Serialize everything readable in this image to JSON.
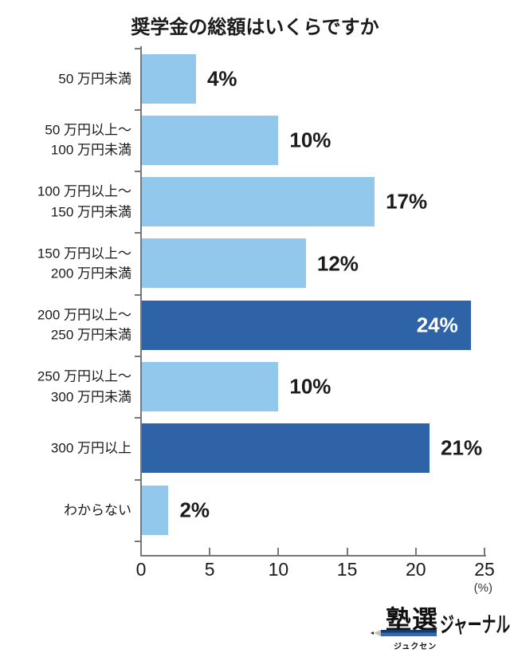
{
  "chart_data": {
    "type": "bar",
    "orientation": "horizontal",
    "title": "奨学金の総額はいくらですか",
    "categories": [
      "50 万円未満",
      "50 万円以上～\n100 万円未満",
      "100 万円以上～\n150 万円未満",
      "150 万円以上～\n200 万円未満",
      "200 万円以上～\n250 万円未満",
      "250 万円以上～\n300 万円未満",
      "300 万円以上",
      "わからない"
    ],
    "values": [
      4,
      10,
      17,
      12,
      24,
      10,
      21,
      2
    ],
    "value_labels": [
      "4%",
      "10%",
      "17%",
      "12%",
      "24%",
      "10%",
      "21%",
      "2%"
    ],
    "bar_colors": [
      "light",
      "light",
      "light",
      "light",
      "dark",
      "light",
      "dark",
      "light"
    ],
    "value_label_positions": [
      "outside",
      "outside",
      "outside",
      "outside",
      "inside",
      "outside",
      "outside",
      "outside"
    ],
    "colors": {
      "light": "#92C8EC",
      "dark": "#2F63A8",
      "axis": "#777777",
      "text": "#1B1B1B",
      "value_inside_text": "#FFFFFF"
    },
    "x_ticks": [
      "0",
      "5",
      "10",
      "15",
      "20",
      "25"
    ],
    "xlim": [
      0,
      25
    ],
    "unit_label": "(%)",
    "xlabel": "",
    "ylabel": "",
    "grid": false,
    "legend": false
  },
  "footer": {
    "logo_main": "塾選",
    "logo_reading": "ジュクセン",
    "logo_suffix": "ジャーナル"
  }
}
